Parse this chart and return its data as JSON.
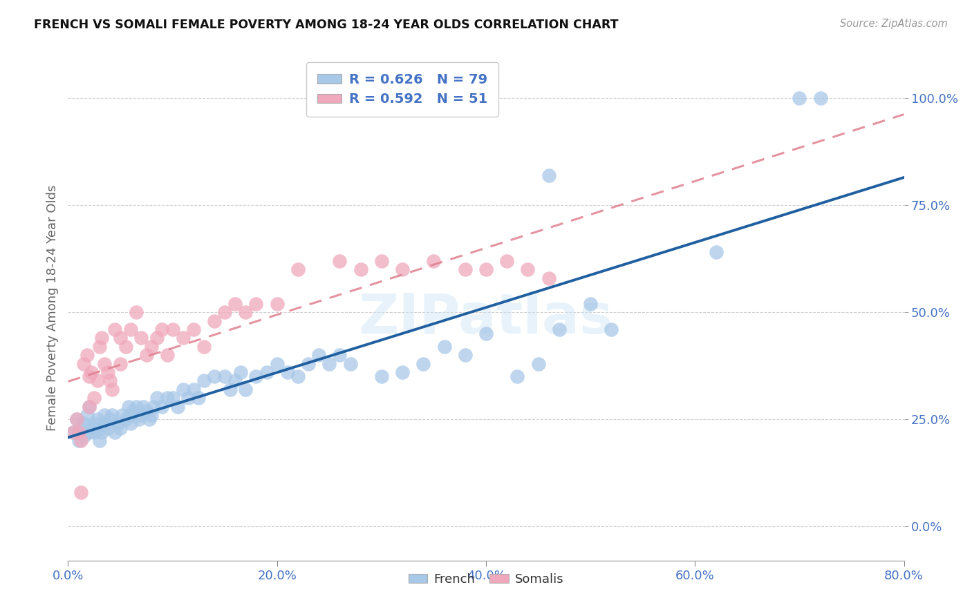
{
  "title": "FRENCH VS SOMALI FEMALE POVERTY AMONG 18-24 YEAR OLDS CORRELATION CHART",
  "source": "Source: ZipAtlas.com",
  "ylabel": "Female Poverty Among 18-24 Year Olds",
  "xlim": [
    0.0,
    0.8
  ],
  "ylim": [
    -0.08,
    1.1
  ],
  "french_scatter_color": "#a8c8e8",
  "somali_scatter_color": "#f0a8bc",
  "french_line_color": "#2060a0",
  "somali_line_color": "#e08090",
  "legend_text_color": "#4472c4",
  "tick_color": "#4472c4",
  "ylabel_color": "#666666",
  "grid_color": "#cccccc",
  "R_french": 0.626,
  "N_french": 79,
  "R_somali": 0.592,
  "N_somali": 51,
  "legend_labels": [
    "French",
    "Somalis"
  ],
  "watermark": "ZIPatlas",
  "french_x": [
    0.005,
    0.008,
    0.01,
    0.012,
    0.015,
    0.015,
    0.018,
    0.02,
    0.02,
    0.022,
    0.025,
    0.025,
    0.028,
    0.03,
    0.03,
    0.032,
    0.035,
    0.035,
    0.038,
    0.04,
    0.042,
    0.045,
    0.048,
    0.05,
    0.052,
    0.055,
    0.058,
    0.06,
    0.06,
    0.062,
    0.065,
    0.068,
    0.07,
    0.072,
    0.075,
    0.078,
    0.08,
    0.082,
    0.085,
    0.09,
    0.095,
    0.1,
    0.105,
    0.11,
    0.115,
    0.12,
    0.125,
    0.13,
    0.14,
    0.15,
    0.155,
    0.16,
    0.165,
    0.17,
    0.18,
    0.19,
    0.2,
    0.21,
    0.22,
    0.23,
    0.24,
    0.25,
    0.26,
    0.27,
    0.3,
    0.32,
    0.34,
    0.36,
    0.38,
    0.4,
    0.43,
    0.45,
    0.47,
    0.5,
    0.52,
    0.62,
    0.7,
    0.72,
    0.46
  ],
  "french_y": [
    0.22,
    0.25,
    0.2,
    0.23,
    0.24,
    0.21,
    0.26,
    0.22,
    0.28,
    0.23,
    0.22,
    0.24,
    0.25,
    0.2,
    0.23,
    0.22,
    0.26,
    0.24,
    0.23,
    0.25,
    0.26,
    0.22,
    0.24,
    0.23,
    0.26,
    0.25,
    0.28,
    0.26,
    0.24,
    0.27,
    0.28,
    0.25,
    0.26,
    0.28,
    0.27,
    0.25,
    0.26,
    0.28,
    0.3,
    0.28,
    0.3,
    0.3,
    0.28,
    0.32,
    0.3,
    0.32,
    0.3,
    0.34,
    0.35,
    0.35,
    0.32,
    0.34,
    0.36,
    0.32,
    0.35,
    0.36,
    0.38,
    0.36,
    0.35,
    0.38,
    0.4,
    0.38,
    0.4,
    0.38,
    0.35,
    0.36,
    0.38,
    0.42,
    0.4,
    0.45,
    0.35,
    0.38,
    0.46,
    0.52,
    0.46,
    0.64,
    1.0,
    1.0,
    0.82
  ],
  "somali_x": [
    0.005,
    0.008,
    0.01,
    0.012,
    0.015,
    0.018,
    0.02,
    0.022,
    0.025,
    0.028,
    0.03,
    0.032,
    0.035,
    0.038,
    0.04,
    0.042,
    0.045,
    0.05,
    0.055,
    0.06,
    0.065,
    0.07,
    0.075,
    0.08,
    0.085,
    0.09,
    0.095,
    0.1,
    0.11,
    0.12,
    0.13,
    0.14,
    0.15,
    0.16,
    0.17,
    0.18,
    0.2,
    0.22,
    0.26,
    0.28,
    0.3,
    0.32,
    0.35,
    0.38,
    0.4,
    0.42,
    0.44,
    0.46,
    0.05,
    0.02,
    0.012
  ],
  "somali_y": [
    0.22,
    0.25,
    0.22,
    0.2,
    0.38,
    0.4,
    0.28,
    0.36,
    0.3,
    0.34,
    0.42,
    0.44,
    0.38,
    0.36,
    0.34,
    0.32,
    0.46,
    0.44,
    0.42,
    0.46,
    0.5,
    0.44,
    0.4,
    0.42,
    0.44,
    0.46,
    0.4,
    0.46,
    0.44,
    0.46,
    0.42,
    0.48,
    0.5,
    0.52,
    0.5,
    0.52,
    0.52,
    0.6,
    0.62,
    0.6,
    0.62,
    0.6,
    0.62,
    0.6,
    0.6,
    0.62,
    0.6,
    0.58,
    0.38,
    0.35,
    0.08
  ]
}
